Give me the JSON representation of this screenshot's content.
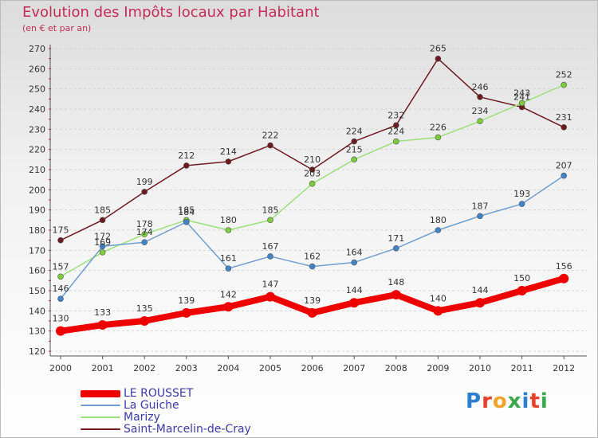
{
  "title": "Evolution des Impôts locaux par Habitant",
  "subtitle": "(en € et par an)",
  "logo": {
    "text": "Proxiti",
    "colors": [
      "#2b7fd1",
      "#e9402a",
      "#f3a22a",
      "#3aa84a",
      "#2b7fd1",
      "#e9402a",
      "#3aa84a"
    ]
  },
  "chart_data": {
    "type": "line",
    "title": "Evolution des Impôts locaux par Habitant",
    "ylabel": "(en € et par an)",
    "xlabel": "",
    "ylim": [
      120,
      270
    ],
    "ytick_step": 10,
    "grid": "horizontal dashed",
    "x": [
      "2000",
      "2001",
      "2002",
      "2003",
      "2004",
      "2005",
      "2006",
      "2007",
      "2008",
      "2009",
      "2010",
      "2011",
      "2012"
    ],
    "series": [
      {
        "name": "Saint-Marcelin-de-Cray",
        "color": "#6e1a1f",
        "point_color": "#6e1a1f",
        "thick": false,
        "values": [
          175,
          185,
          199,
          212,
          214,
          222,
          210,
          224,
          232,
          265,
          246,
          241,
          231
        ]
      },
      {
        "name": "Marizy",
        "color": "#9be07a",
        "point_color": "#7ccc3c",
        "thick": false,
        "values": [
          157,
          169,
          178,
          185,
          180,
          185,
          203,
          215,
          224,
          226,
          234,
          243,
          252
        ]
      },
      {
        "name": "La Guiche",
        "color": "#6f9fd0",
        "point_color": "#3f83c9",
        "thick": false,
        "values": [
          146,
          172,
          174,
          184,
          161,
          167,
          162,
          164,
          171,
          180,
          187,
          193,
          207
        ]
      },
      {
        "name": "LE ROUSSET",
        "color": "#ee0000",
        "point_color": "#ee0000",
        "thick": true,
        "values": [
          130,
          133,
          135,
          139,
          142,
          147,
          139,
          144,
          148,
          140,
          144,
          150,
          156
        ]
      }
    ],
    "legend": [
      {
        "label": "LE ROUSSET",
        "color": "#ee0000",
        "thick": true
      },
      {
        "label": "La Guiche",
        "color": "#6f9fd0",
        "thick": false
      },
      {
        "label": "Marizy",
        "color": "#9be07a",
        "thick": false
      },
      {
        "label": "Saint-Marcelin-de-Cray",
        "color": "#6e1a1f",
        "thick": false
      }
    ]
  }
}
